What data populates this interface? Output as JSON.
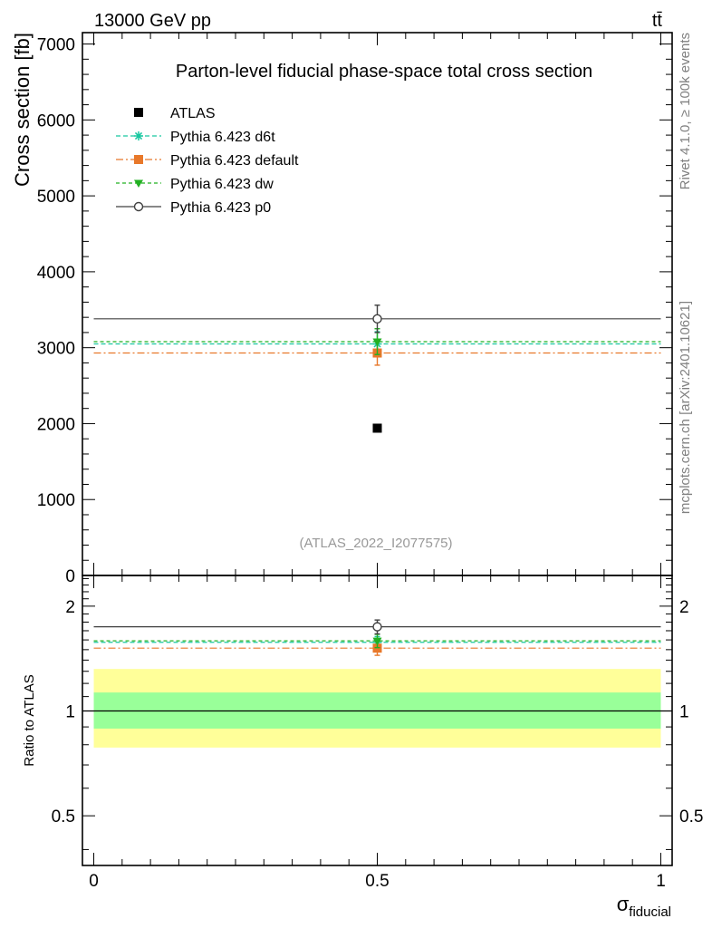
{
  "header": {
    "left": "13000 GeV pp",
    "right": "tt̄"
  },
  "side_text": {
    "rivet": "Rivet 4.1.0, ≥ 100k events",
    "mcplots": "mcplots.cern.ch [arXiv:2401.10621]"
  },
  "chart_data": {
    "type": "scatter",
    "title": "Parton-level fiducial phase-space total cross section",
    "ylabel": "Cross section [fb]",
    "xlabel": "σ",
    "xlabel_sub": "fiducial",
    "ratio_ylabel": "Ratio to ATLAS",
    "analysis_label": "(ATLAS_2022_I2077575)",
    "xlim": [
      -0.02,
      1.02
    ],
    "ylim": [
      0,
      7150
    ],
    "ratio_ylim": [
      0.36,
      2.45
    ],
    "ratio_scale": "log",
    "x_ticks": [
      {
        "v": 0,
        "label": "0"
      },
      {
        "v": 0.5,
        "label": "0.5"
      },
      {
        "v": 1,
        "label": "1"
      }
    ],
    "y_ticks": [
      {
        "v": 0,
        "label": "0"
      },
      {
        "v": 1000,
        "label": "1000"
      },
      {
        "v": 2000,
        "label": "2000"
      },
      {
        "v": 3000,
        "label": "3000"
      },
      {
        "v": 4000,
        "label": "4000"
      },
      {
        "v": 5000,
        "label": "5000"
      },
      {
        "v": 6000,
        "label": "6000"
      },
      {
        "v": 7000,
        "label": "7000"
      }
    ],
    "ratio_ticks": [
      {
        "v": 0.5,
        "label": "0.5"
      },
      {
        "v": 1,
        "label": "1"
      },
      {
        "v": 2,
        "label": "2"
      }
    ],
    "data": {
      "name": "ATLAS",
      "x": 0.5,
      "y": 1940,
      "color": "#000000"
    },
    "bands": {
      "inner": [
        0.89,
        1.13
      ],
      "outer": [
        0.785,
        1.32
      ],
      "inner_color": "#99ff99",
      "outer_color": "#ffff99"
    },
    "series": [
      {
        "name": "Pythia 6.423 d6t",
        "y": 3050,
        "err": 160,
        "ratio": 1.575,
        "ratio_err": 0.06,
        "color": "#18c7a0",
        "dash": "5,3",
        "marker": "star"
      },
      {
        "name": "Pythia 6.423 default",
        "y": 2930,
        "err": 160,
        "ratio": 1.515,
        "ratio_err": 0.07,
        "color": "#e8782a",
        "dash": "8,3,2,3",
        "marker": "square"
      },
      {
        "name": "Pythia 6.423 dw",
        "y": 3080,
        "err": 170,
        "ratio": 1.59,
        "ratio_err": 0.07,
        "color": "#22b022",
        "dash": "4,3",
        "marker": "triangle"
      },
      {
        "name": "Pythia 6.423 p0",
        "y": 3380,
        "err": 180,
        "ratio": 1.745,
        "ratio_err": 0.08,
        "color": "#404040",
        "dash": "",
        "marker": "circle"
      }
    ]
  }
}
